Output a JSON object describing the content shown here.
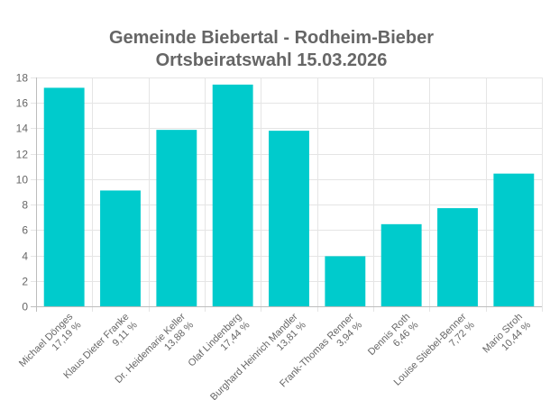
{
  "colors": {
    "bar": "#00CBCC",
    "grid": "#E5E5E5",
    "axis": "#BDBDBD",
    "title": "#666666",
    "tick": "#666666"
  },
  "chart_data": {
    "type": "bar",
    "title": [
      "Gemeinde Biebertal - Rodheim-Bieber",
      "Ortsbeiratswahl 15.03.2026"
    ],
    "categories": [
      [
        "Michael Dönges",
        "17,19 %"
      ],
      [
        "Klaus Dieter Franke",
        "9,11 %"
      ],
      [
        "Dr. Heidemarie Keller",
        "13,88 %"
      ],
      [
        "Olaf Lindenberg",
        "17,44 %"
      ],
      [
        "Burghard Heinrich Mandler",
        "13,81 %"
      ],
      [
        "Frank-Thomas Renner",
        "3,94 %"
      ],
      [
        "Dennis Roth",
        "6,46 %"
      ],
      [
        "Louise Stiebel-Benner",
        "7,72 %"
      ],
      [
        "Mario Stroh",
        "10,44 %"
      ]
    ],
    "values": [
      17.19,
      9.11,
      13.88,
      17.44,
      13.81,
      3.94,
      6.46,
      7.72,
      10.44
    ],
    "yticks": [
      "0",
      "2",
      "4",
      "6",
      "8",
      "10",
      "12",
      "14",
      "16",
      "18"
    ],
    "ylim": [
      0,
      18
    ],
    "xlabel": "",
    "ylabel": "",
    "grid": true,
    "legend": "none"
  }
}
